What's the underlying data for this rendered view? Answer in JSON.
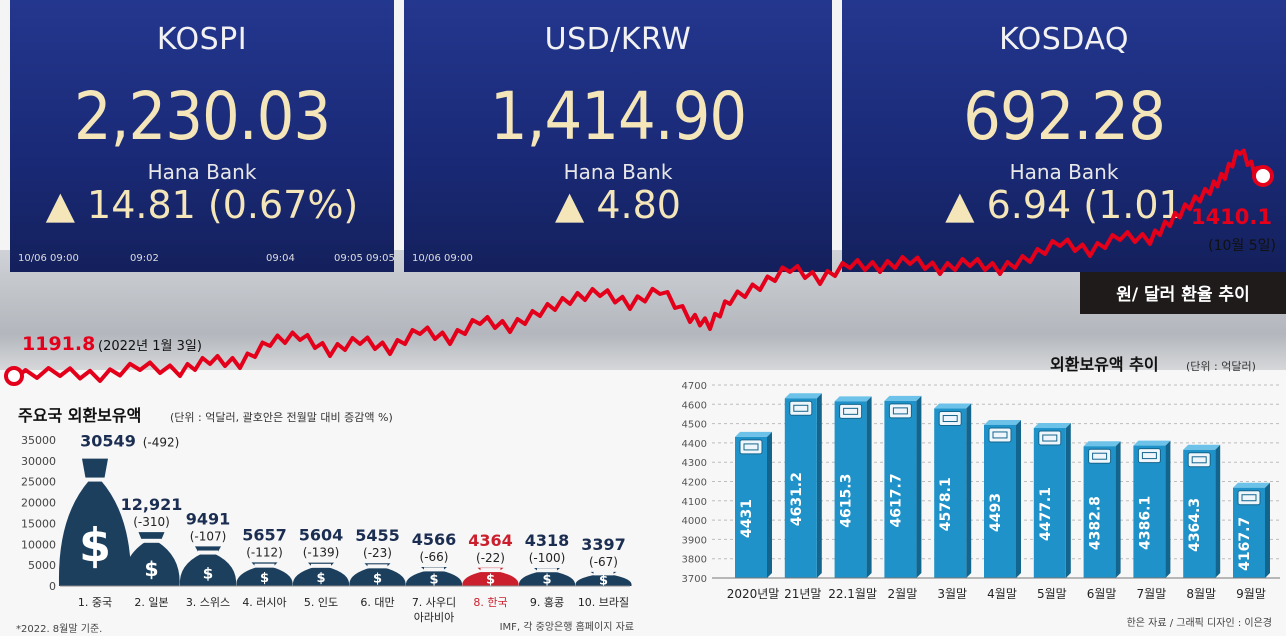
{
  "boards": [
    {
      "name": "KOSPI",
      "value": "2,230.03",
      "bank": "Hana Bank",
      "change": "▲ 14.81  (0.67%)",
      "times": [
        "10/06 09:00",
        "09:02",
        "09:04",
        "09:05",
        "09:05"
      ]
    },
    {
      "name": "USD/KRW",
      "value": "1,414.90",
      "bank": "Hana Bank",
      "change": "▲ 4.80",
      "times": [
        "10/06 09:00"
      ]
    },
    {
      "name": "KOSDAQ",
      "value": "692.28",
      "bank": "Hana Bank",
      "change": "▲ 6.94  (1.01",
      "times": []
    }
  ],
  "fx_line": {
    "start_value": "1191.8",
    "start_label": "(2022년 1월 3일)",
    "end_value": "1410.1",
    "end_label": "(10월 5일)",
    "title": "원/ 달러 환율 추이",
    "color": "#e4001b"
  },
  "chart_data": [
    {
      "type": "bar",
      "title": "주요국 외환보유액",
      "subtitle": "(단위 : 억달러, 괄호안은 전월말 대비 증감액 %)",
      "categories": [
        "1. 중국",
        "2. 일본",
        "3. 스위스",
        "4. 러시아",
        "5. 인도",
        "6. 대만",
        "7. 사우디 아라비아",
        "8. 한국",
        "9. 홍콩",
        "10. 브라질"
      ],
      "values": [
        30549,
        12921,
        9491,
        5657,
        5604,
        5455,
        4566,
        4364,
        4318,
        3397
      ],
      "value_labels": [
        "30549",
        "12,921",
        "9491",
        "5657",
        "5604",
        "5455",
        "4566",
        "4364",
        "4318",
        "3397"
      ],
      "changes": [
        "(-492)",
        "(-310)",
        "(-107)",
        "(-112)",
        "(-139)",
        "(-23)",
        "(-66)",
        "(-22)",
        "(-100)",
        "(-67)"
      ],
      "highlight_index": 7,
      "highlight_color": "#cc1f2e",
      "bar_color": "#1c3f5e",
      "ylim": [
        0,
        35000
      ],
      "yticks": [
        0,
        5000,
        10000,
        15000,
        20000,
        25000,
        30000,
        35000
      ],
      "note": "*2022. 8월말 기준.",
      "source": "IMF, 각 중앙은행 홈페이지 자료"
    },
    {
      "type": "bar",
      "title": "외환보유액 추이",
      "subtitle": "(단위 : 억달러)",
      "categories": [
        "2020년말",
        "21년말",
        "22.1월말",
        "2월말",
        "3월말",
        "4월말",
        "5월말",
        "6월말",
        "7월말",
        "8월말",
        "9월말"
      ],
      "values": [
        4431,
        4631.2,
        4615.3,
        4617.7,
        4578.1,
        4493,
        4477.1,
        4382.8,
        4386.1,
        4364.3,
        4167.7
      ],
      "value_labels": [
        "4431",
        "4631.2",
        "4615.3",
        "4617.7",
        "4578.1",
        "4493",
        "4477.1",
        "4382.8",
        "4386.1",
        "4364.3",
        "4167.7"
      ],
      "bar_color": "#1f93c9",
      "ylim": [
        3700,
        4700
      ],
      "yticks": [
        3700,
        3800,
        3900,
        4000,
        4100,
        4200,
        4300,
        4400,
        4500,
        4600,
        4700
      ],
      "grid": true,
      "source": "한은 자료 / 그래픽 디자인 : 이은경"
    }
  ]
}
